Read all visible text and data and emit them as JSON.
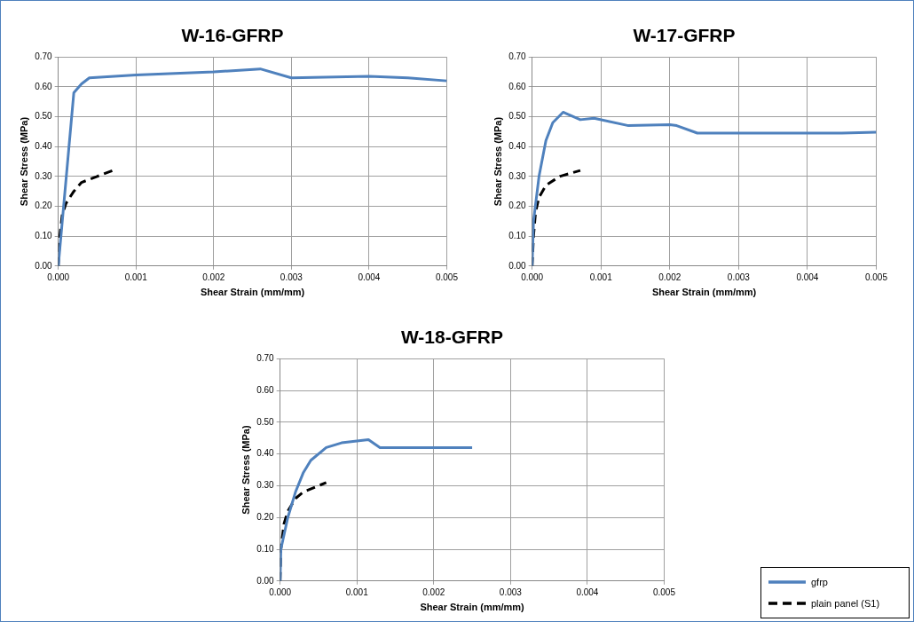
{
  "chart_data": [
    {
      "type": "line",
      "title": "W-16-GFRP",
      "xlabel": "Shear Strain (mm/mm)",
      "ylabel": "Shear Stress (MPa)",
      "xlim": [
        0,
        0.005
      ],
      "ylim": [
        0,
        0.7
      ],
      "xticks": [
        {
          "value": 0,
          "label": "0.000"
        },
        {
          "value": 0.001,
          "label": "0.001"
        },
        {
          "value": 0.002,
          "label": "0.002"
        },
        {
          "value": 0.003,
          "label": "0.003"
        },
        {
          "value": 0.004,
          "label": "0.004"
        },
        {
          "value": 0.005,
          "label": "0.005"
        }
      ],
      "yticks": [
        {
          "value": 0,
          "label": "0.00"
        },
        {
          "value": 0.1,
          "label": "0.10"
        },
        {
          "value": 0.2,
          "label": "0.20"
        },
        {
          "value": 0.3,
          "label": "0.30"
        },
        {
          "value": 0.4,
          "label": "0.40"
        },
        {
          "value": 0.5,
          "label": "0.50"
        },
        {
          "value": 0.6,
          "label": "0.60"
        },
        {
          "value": 0.7,
          "label": "0.70"
        }
      ],
      "grid": true,
      "marker": "none",
      "series": [
        {
          "color": "#4f81bd",
          "line_style": "solid",
          "x": [
            0,
            0.0002,
            0.0003,
            0.0004,
            0.001,
            0.002,
            0.0026,
            0.003,
            0.004,
            0.0045,
            0.005
          ],
          "values": [
            0,
            0.58,
            0.61,
            0.63,
            0.64,
            0.65,
            0.66,
            0.63,
            0.635,
            0.63,
            0.62
          ]
        },
        {
          "color": "#000000",
          "line_style": "dashed",
          "x": [
            0,
            2e-05,
            5e-05,
            0.0001,
            0.0002,
            0.0003,
            0.0005,
            0.0007
          ],
          "values": [
            0,
            0.1,
            0.17,
            0.21,
            0.25,
            0.28,
            0.3,
            0.32
          ]
        }
      ]
    },
    {
      "type": "line",
      "title": "W-17-GFRP",
      "xlabel": "Shear Strain (mm/mm)",
      "ylabel": "Shear Stress (MPa)",
      "xlim": [
        0,
        0.005
      ],
      "ylim": [
        0,
        0.7
      ],
      "xticks": [
        {
          "value": 0,
          "label": "0.000"
        },
        {
          "value": 0.001,
          "label": "0.001"
        },
        {
          "value": 0.002,
          "label": "0.002"
        },
        {
          "value": 0.003,
          "label": "0.003"
        },
        {
          "value": 0.004,
          "label": "0.004"
        },
        {
          "value": 0.005,
          "label": "0.005"
        }
      ],
      "yticks": [
        {
          "value": 0,
          "label": "0.00"
        },
        {
          "value": 0.1,
          "label": "0.10"
        },
        {
          "value": 0.2,
          "label": "0.20"
        },
        {
          "value": 0.3,
          "label": "0.30"
        },
        {
          "value": 0.4,
          "label": "0.40"
        },
        {
          "value": 0.5,
          "label": "0.50"
        },
        {
          "value": 0.6,
          "label": "0.60"
        },
        {
          "value": 0.7,
          "label": "0.70"
        }
      ],
      "grid": true,
      "marker": "none",
      "series": [
        {
          "color": "#4f81bd",
          "line_style": "solid",
          "x": [
            0,
            2e-05,
            0.0001,
            0.0002,
            0.0003,
            0.00045,
            0.0005,
            0.0007,
            0.0009,
            0.0014,
            0.002,
            0.0021,
            0.0024,
            0.003,
            0.0045,
            0.005
          ],
          "values": [
            0,
            0.15,
            0.3,
            0.42,
            0.48,
            0.515,
            0.51,
            0.49,
            0.495,
            0.47,
            0.473,
            0.47,
            0.445,
            0.445,
            0.445,
            0.448
          ]
        },
        {
          "color": "#000000",
          "line_style": "dashed",
          "x": [
            0,
            2e-05,
            5e-05,
            0.0001,
            0.0002,
            0.0004,
            0.0007
          ],
          "values": [
            0,
            0.1,
            0.18,
            0.23,
            0.27,
            0.3,
            0.32
          ]
        }
      ]
    },
    {
      "type": "line",
      "title": "W-18-GFRP",
      "xlabel": "Shear Strain (mm/mm)",
      "ylabel": "Shear Stress (MPa)",
      "xlim": [
        0,
        0.005
      ],
      "ylim": [
        0,
        0.7
      ],
      "xticks": [
        {
          "value": 0,
          "label": "0.000"
        },
        {
          "value": 0.001,
          "label": "0.001"
        },
        {
          "value": 0.002,
          "label": "0.002"
        },
        {
          "value": 0.003,
          "label": "0.003"
        },
        {
          "value": 0.004,
          "label": "0.004"
        },
        {
          "value": 0.005,
          "label": "0.005"
        }
      ],
      "yticks": [
        {
          "value": 0,
          "label": "0.00"
        },
        {
          "value": 0.1,
          "label": "0.10"
        },
        {
          "value": 0.2,
          "label": "0.20"
        },
        {
          "value": 0.3,
          "label": "0.30"
        },
        {
          "value": 0.4,
          "label": "0.40"
        },
        {
          "value": 0.5,
          "label": "0.50"
        },
        {
          "value": 0.6,
          "label": "0.60"
        },
        {
          "value": 0.7,
          "label": "0.70"
        }
      ],
      "grid": true,
      "marker": "none",
      "legend": "bottom right",
      "series": [
        {
          "name": "gfrp",
          "color": "#4f81bd",
          "line_style": "solid",
          "x": [
            0,
            1e-05,
            0.0001,
            0.0002,
            0.0003,
            0.0004,
            0.0006,
            0.0008,
            0.00115,
            0.0013,
            0.0015,
            0.0025
          ],
          "values": [
            0,
            0.1,
            0.2,
            0.28,
            0.34,
            0.38,
            0.42,
            0.435,
            0.445,
            0.42,
            0.42,
            0.42
          ]
        },
        {
          "name": "plain panel (S1)",
          "color": "#000000",
          "line_style": "dashed",
          "x": [
            0,
            1e-05,
            5e-05,
            0.0001,
            0.0002,
            0.0003,
            0.0006
          ],
          "values": [
            0,
            0.1,
            0.18,
            0.22,
            0.26,
            0.28,
            0.31
          ]
        }
      ]
    }
  ]
}
